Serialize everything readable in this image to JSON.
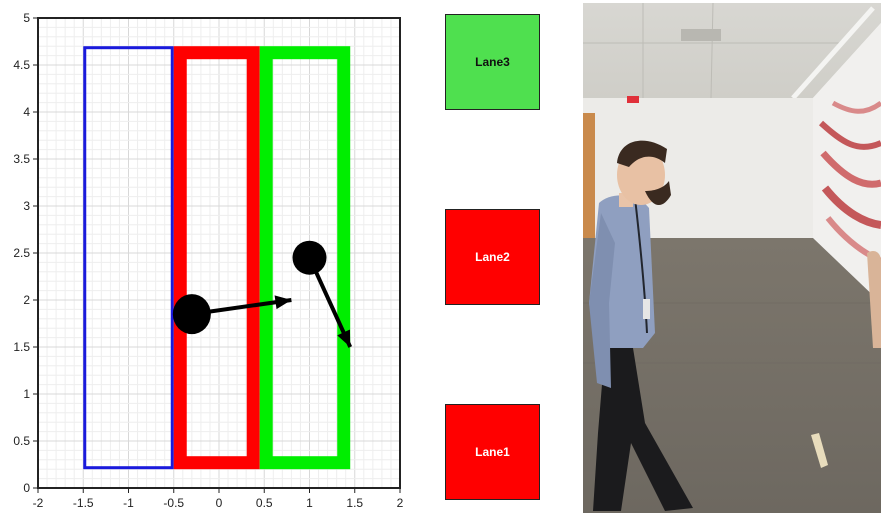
{
  "chart_data": {
    "type": "scatter",
    "title": "",
    "xlabel": "",
    "ylabel": "",
    "xlim": [
      -2,
      2
    ],
    "ylim": [
      0,
      5
    ],
    "xticks": [
      "-2",
      "-1.5",
      "-1",
      "-0.5",
      "0",
      "0.5",
      "1",
      "1.5",
      "2"
    ],
    "yticks": [
      "0",
      "0.5",
      "1",
      "1.5",
      "2",
      "2.5",
      "3",
      "3.5",
      "4",
      "4.5",
      "5"
    ],
    "grid": true,
    "lanes": [
      {
        "id": "lane1",
        "color": "#1a1adc",
        "x": [
          -1.5,
          -0.5
        ],
        "y": [
          0.2,
          4.7
        ]
      },
      {
        "id": "lane2",
        "color": "#ff0000",
        "x": [
          -0.5,
          0.45
        ],
        "y": [
          0.2,
          4.7
        ]
      },
      {
        "id": "lane3",
        "color": "#00ee00",
        "x": [
          0.45,
          1.45
        ],
        "y": [
          0.2,
          4.7
        ]
      }
    ],
    "people": [
      {
        "position": [
          -0.3,
          1.85
        ],
        "velocity_to": [
          0.8,
          2.0
        ]
      },
      {
        "position": [
          1.0,
          2.45
        ],
        "velocity_to": [
          1.45,
          1.5
        ]
      }
    ]
  },
  "lane_indicators": [
    {
      "label": "Lane3",
      "color": "#4fe04f",
      "text_color": "#111111"
    },
    {
      "label": "Lane2",
      "color": "#ff0000",
      "text_color": "#ffffff"
    },
    {
      "label": "Lane1",
      "color": "#ff0000",
      "text_color": "#ffffff"
    }
  ],
  "photo": {
    "subject": "man-walking-in-office-hallway"
  }
}
